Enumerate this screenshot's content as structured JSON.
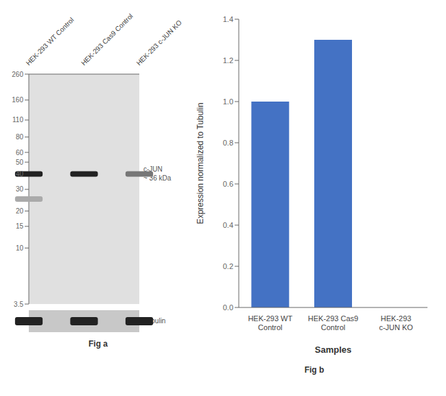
{
  "chart_data": [
    {
      "type": "blot",
      "title": "Fig a",
      "categories": [
        "HEK-293 WT Control",
        "HEK-293 Cas9 Control",
        "HEK-293 c-JUN KO"
      ],
      "series": [
        {
          "color": "#222222",
          "values": [
            40,
            40,
            null
          ]
        },
        {
          "color": "#777777",
          "values": [
            null,
            null,
            40
          ]
        },
        {
          "color": "#aaaaaa",
          "values": [
            25,
            null,
            null
          ]
        }
      ],
      "log": "y",
      "ylim": [
        3.5,
        260
      ],
      "yticks": [
        260,
        160,
        110,
        80,
        60,
        50,
        40,
        30,
        20,
        15,
        10,
        3.5
      ],
      "annotations": [
        {
          "text": "c-JUN\n~ 36 kDa",
          "y": 40
        },
        {
          "text": "Tubulin"
        }
      ]
    },
    {
      "type": "bar",
      "title": "Fig b",
      "categories": [
        "HEK-293 WT Control",
        "HEK-293 Cas9 Control",
        "HEK-293 c-JUN KO"
      ],
      "values": [
        1.0,
        1.3,
        0.0
      ],
      "color": "#4472c4",
      "xlabel": "Samples",
      "ylabel": "Expression normalized to Tubulin",
      "ylim": [
        0,
        1.4
      ],
      "yticks": [
        {
          "value": 0,
          "label": "0.0"
        },
        0.2,
        0.4,
        0.6,
        0.8,
        {
          "value": 1,
          "label": "1.0"
        },
        1.2,
        1.4
      ],
      "grid": false
    }
  ]
}
